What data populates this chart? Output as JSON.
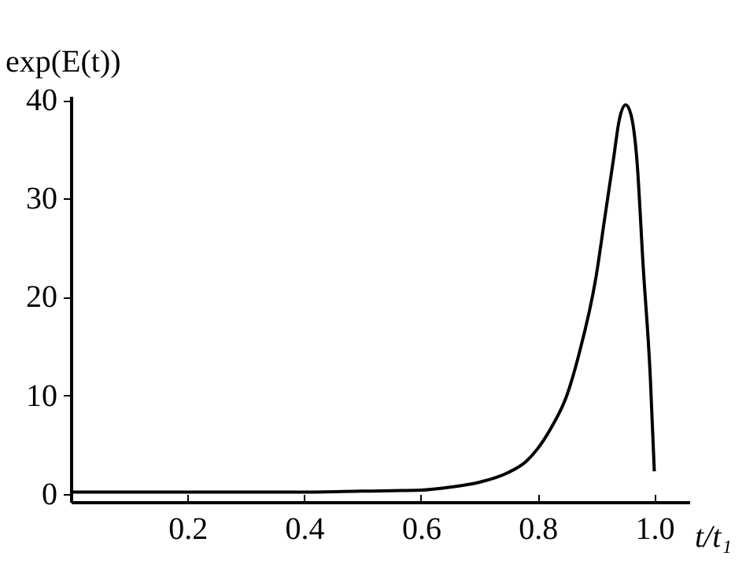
{
  "chart_data": {
    "type": "line",
    "xlabel": "t/t₁",
    "ylabel": "exp(E(t))",
    "x": [
      0,
      0.2,
      0.4,
      0.5,
      0.6,
      0.65,
      0.7,
      0.75,
      0.78,
      0.8,
      0.824,
      0.85,
      0.87,
      0.9,
      0.915,
      0.93,
      0.94,
      0.951,
      0.96,
      0.97,
      0.981,
      0.993,
      1.0
    ],
    "series": [
      {
        "color": "#000000",
        "values": [
          0.2,
          0.2,
          0.2,
          0.3,
          0.4,
          0.7,
          1.2,
          2.2,
          3.3,
          4.6,
          6.8,
          10,
          14,
          22,
          28,
          34,
          38,
          39.5,
          38.5,
          34,
          23,
          12,
          2.3
        ]
      }
    ],
    "xlim": [
      0,
      1.06
    ],
    "xticks": [
      0.2,
      0.4,
      0.6,
      0.8,
      {
        "value": 1,
        "label": "1.0"
      }
    ],
    "ylim": [
      -0.8,
      40.4
    ],
    "yticks": [
      0,
      10,
      20,
      30,
      40
    ],
    "grid": false,
    "marker": "none",
    "line_style": "solid"
  }
}
